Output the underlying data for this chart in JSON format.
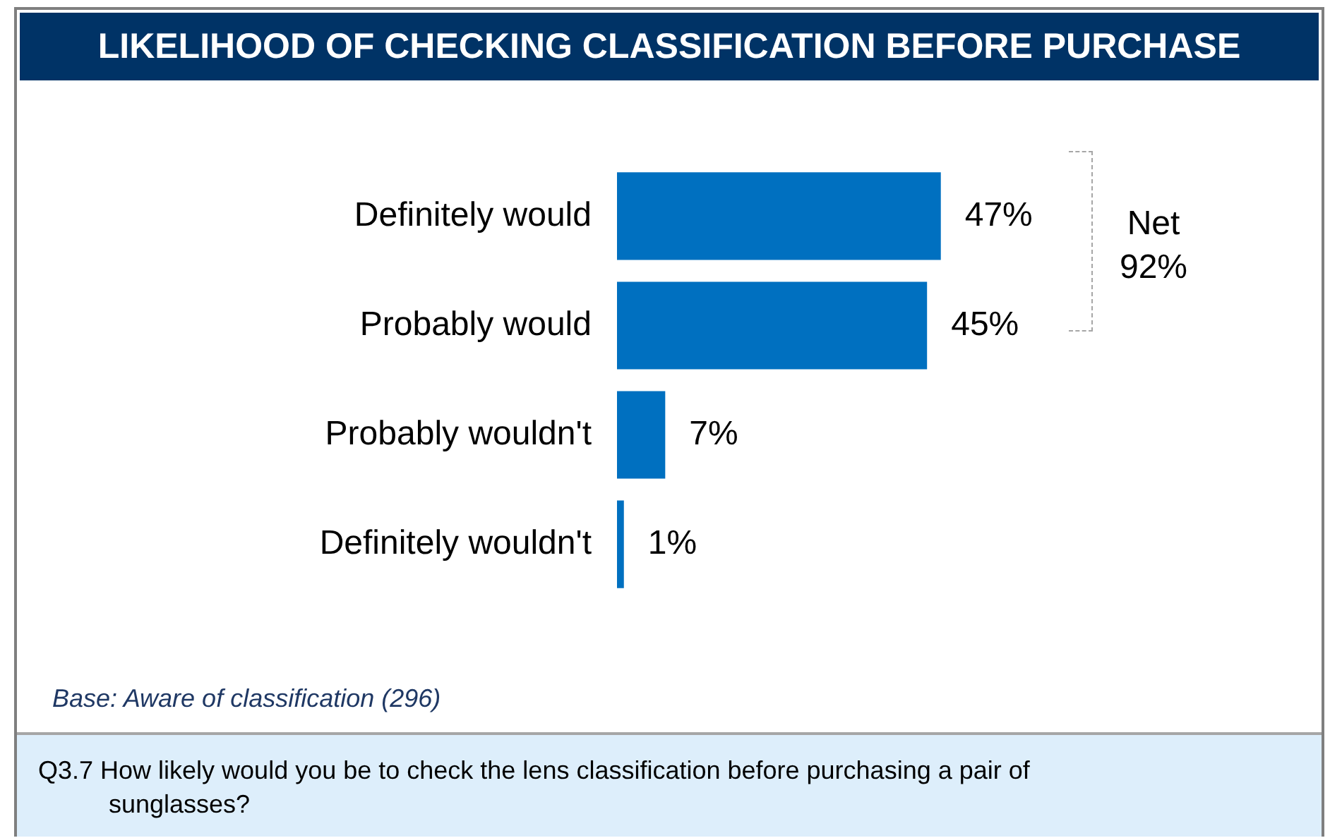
{
  "chart_data": {
    "type": "bar",
    "orientation": "horizontal",
    "title": "LIKELIHOOD OF CHECKING CLASSIFICATION BEFORE PURCHASE",
    "categories": [
      "Definitely would",
      "Probably would",
      "Probably wouldn't",
      "Definitely wouldn't"
    ],
    "values": [
      47,
      45,
      7,
      1
    ],
    "value_labels": [
      "47%",
      "45%",
      "7%",
      "1%"
    ],
    "color": "#0070c0",
    "annotations": [
      "Net 92%",
      "Base: Aware of classification (296)",
      "Q3.7 How likely would you be to check the lens classification before purchasing a pair of sunglasses?"
    ]
  }
}
